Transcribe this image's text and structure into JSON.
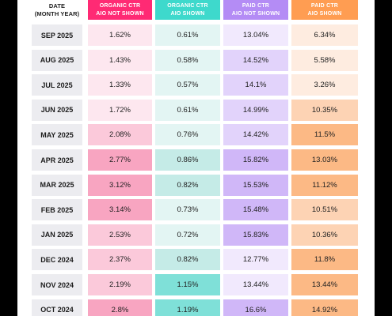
{
  "chart_data": {
    "type": "table",
    "columns": [
      {
        "key": "date",
        "label_lines": [
          "DATE",
          "(MONTH YEAR)"
        ]
      },
      {
        "key": "organic_not_shown",
        "label_lines": [
          "ORGANIC CTR",
          "AIO NOT SHOWN"
        ]
      },
      {
        "key": "organic_shown",
        "label_lines": [
          "ORGANIC CTR",
          "AIO SHOWN"
        ]
      },
      {
        "key": "paid_not_shown",
        "label_lines": [
          "PAID CTR",
          "AIO NOT SHOWN"
        ]
      },
      {
        "key": "paid_shown",
        "label_lines": [
          "PAID CTR",
          "AIO SHOWN"
        ]
      }
    ],
    "rows": [
      {
        "date": "SEP 2025",
        "organic_not_shown": "1.62%",
        "organic_shown": "0.61%",
        "paid_not_shown": "13.04%",
        "paid_shown": "6.34%"
      },
      {
        "date": "AUG 2025",
        "organic_not_shown": "1.43%",
        "organic_shown": "0.58%",
        "paid_not_shown": "14.52%",
        "paid_shown": "5.58%"
      },
      {
        "date": "JUL 2025",
        "organic_not_shown": "1.33%",
        "organic_shown": "0.57%",
        "paid_not_shown": "14.1%",
        "paid_shown": "3.26%"
      },
      {
        "date": "JUN 2025",
        "organic_not_shown": "1.72%",
        "organic_shown": "0.61%",
        "paid_not_shown": "14.99%",
        "paid_shown": "10.35%"
      },
      {
        "date": "MAY 2025",
        "organic_not_shown": "2.08%",
        "organic_shown": "0.76%",
        "paid_not_shown": "14.42%",
        "paid_shown": "11.5%"
      },
      {
        "date": "APR 2025",
        "organic_not_shown": "2.77%",
        "organic_shown": "0.86%",
        "paid_not_shown": "15.82%",
        "paid_shown": "13.03%"
      },
      {
        "date": "MAR 2025",
        "organic_not_shown": "3.12%",
        "organic_shown": "0.82%",
        "paid_not_shown": "15.53%",
        "paid_shown": "11.12%"
      },
      {
        "date": "FEB 2025",
        "organic_not_shown": "3.14%",
        "organic_shown": "0.73%",
        "paid_not_shown": "15.48%",
        "paid_shown": "10.51%"
      },
      {
        "date": "JAN 2025",
        "organic_not_shown": "2.53%",
        "organic_shown": "0.72%",
        "paid_not_shown": "15.83%",
        "paid_shown": "10.36%"
      },
      {
        "date": "DEC 2024",
        "organic_not_shown": "2.37%",
        "organic_shown": "0.82%",
        "paid_not_shown": "12.77%",
        "paid_shown": "11.8%"
      },
      {
        "date": "NOV 2024",
        "organic_not_shown": "2.19%",
        "organic_shown": "1.15%",
        "paid_not_shown": "13.44%",
        "paid_shown": "13.44%"
      },
      {
        "date": "OCT 2024",
        "organic_not_shown": "2.8%",
        "organic_shown": "1.19%",
        "paid_not_shown": "16.6%",
        "paid_shown": "14.92%"
      }
    ]
  },
  "colors": {
    "organic_not_shown": {
      "header": "#ff2a74",
      "light": "#fde7ef",
      "mid": "#fbc9da",
      "dark": "#f8a5c1"
    },
    "organic_shown": {
      "header": "#3ed9cc",
      "light": "#e3f5f3",
      "mid": "#c5ebe7",
      "dark": "#7fe0d8"
    },
    "paid_not_shown": {
      "header": "#b48cf5",
      "light": "#f1e9fd",
      "mid": "#e2d3fb",
      "dark": "#d0b7f8"
    },
    "paid_shown": {
      "header": "#ff9d52",
      "light": "#feece0",
      "mid": "#fdd3b4",
      "dark": "#fcb985"
    },
    "date_cell": "#ececf0",
    "page_background": "#ffffff",
    "outer_background": "#000000"
  }
}
